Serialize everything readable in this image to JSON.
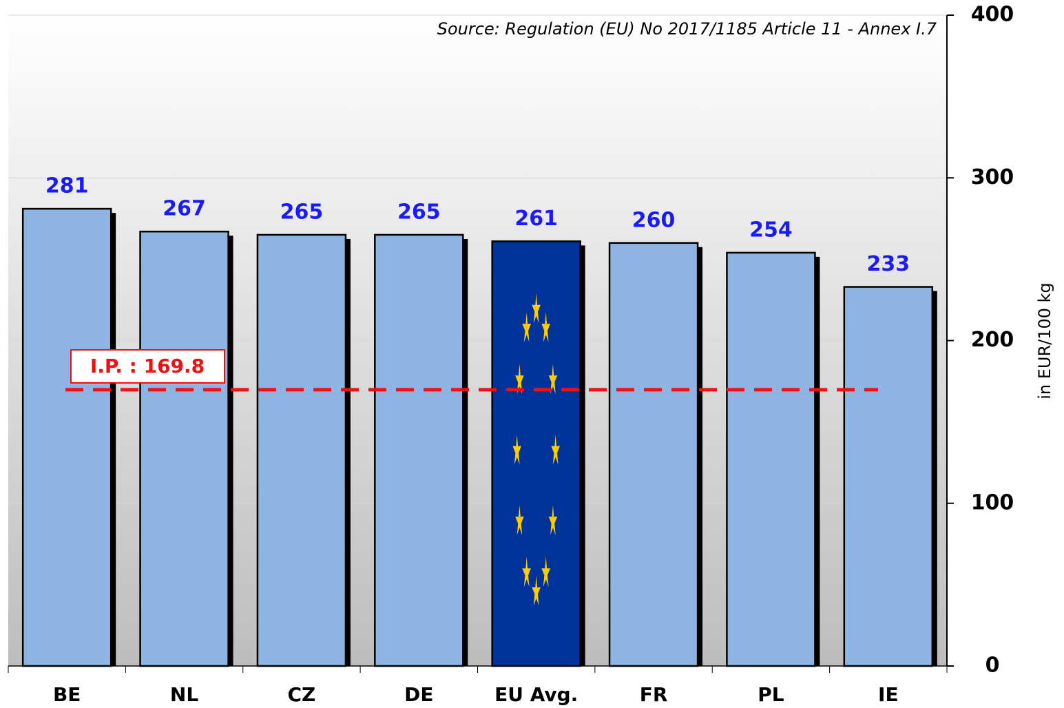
{
  "chart_data": {
    "type": "bar",
    "subtitle": "Source: Regulation (EU) No 2017/1185 Article 11 - Annex I.7",
    "y_axis_label": "in EUR/100 kg",
    "categories": [
      "BE",
      "NL",
      "CZ",
      "DE",
      "EU Avg.",
      "FR",
      "PL",
      "IE"
    ],
    "values": [
      281,
      267,
      265,
      265,
      261,
      260,
      254,
      233
    ],
    "colors": [
      "#8eb4e3",
      "#8eb4e3",
      "#8eb4e3",
      "#8eb4e3",
      "#003399",
      "#8eb4e3",
      "#8eb4e3",
      "#8eb4e3"
    ],
    "value_label_color": "#1a1aff",
    "ylim": [
      0,
      400
    ],
    "yticks": [
      0,
      100,
      200,
      300,
      400
    ],
    "grid": true,
    "reference_line": {
      "value": 169.8,
      "label": "I.P. : 169.8",
      "color": "#ee1111"
    }
  }
}
